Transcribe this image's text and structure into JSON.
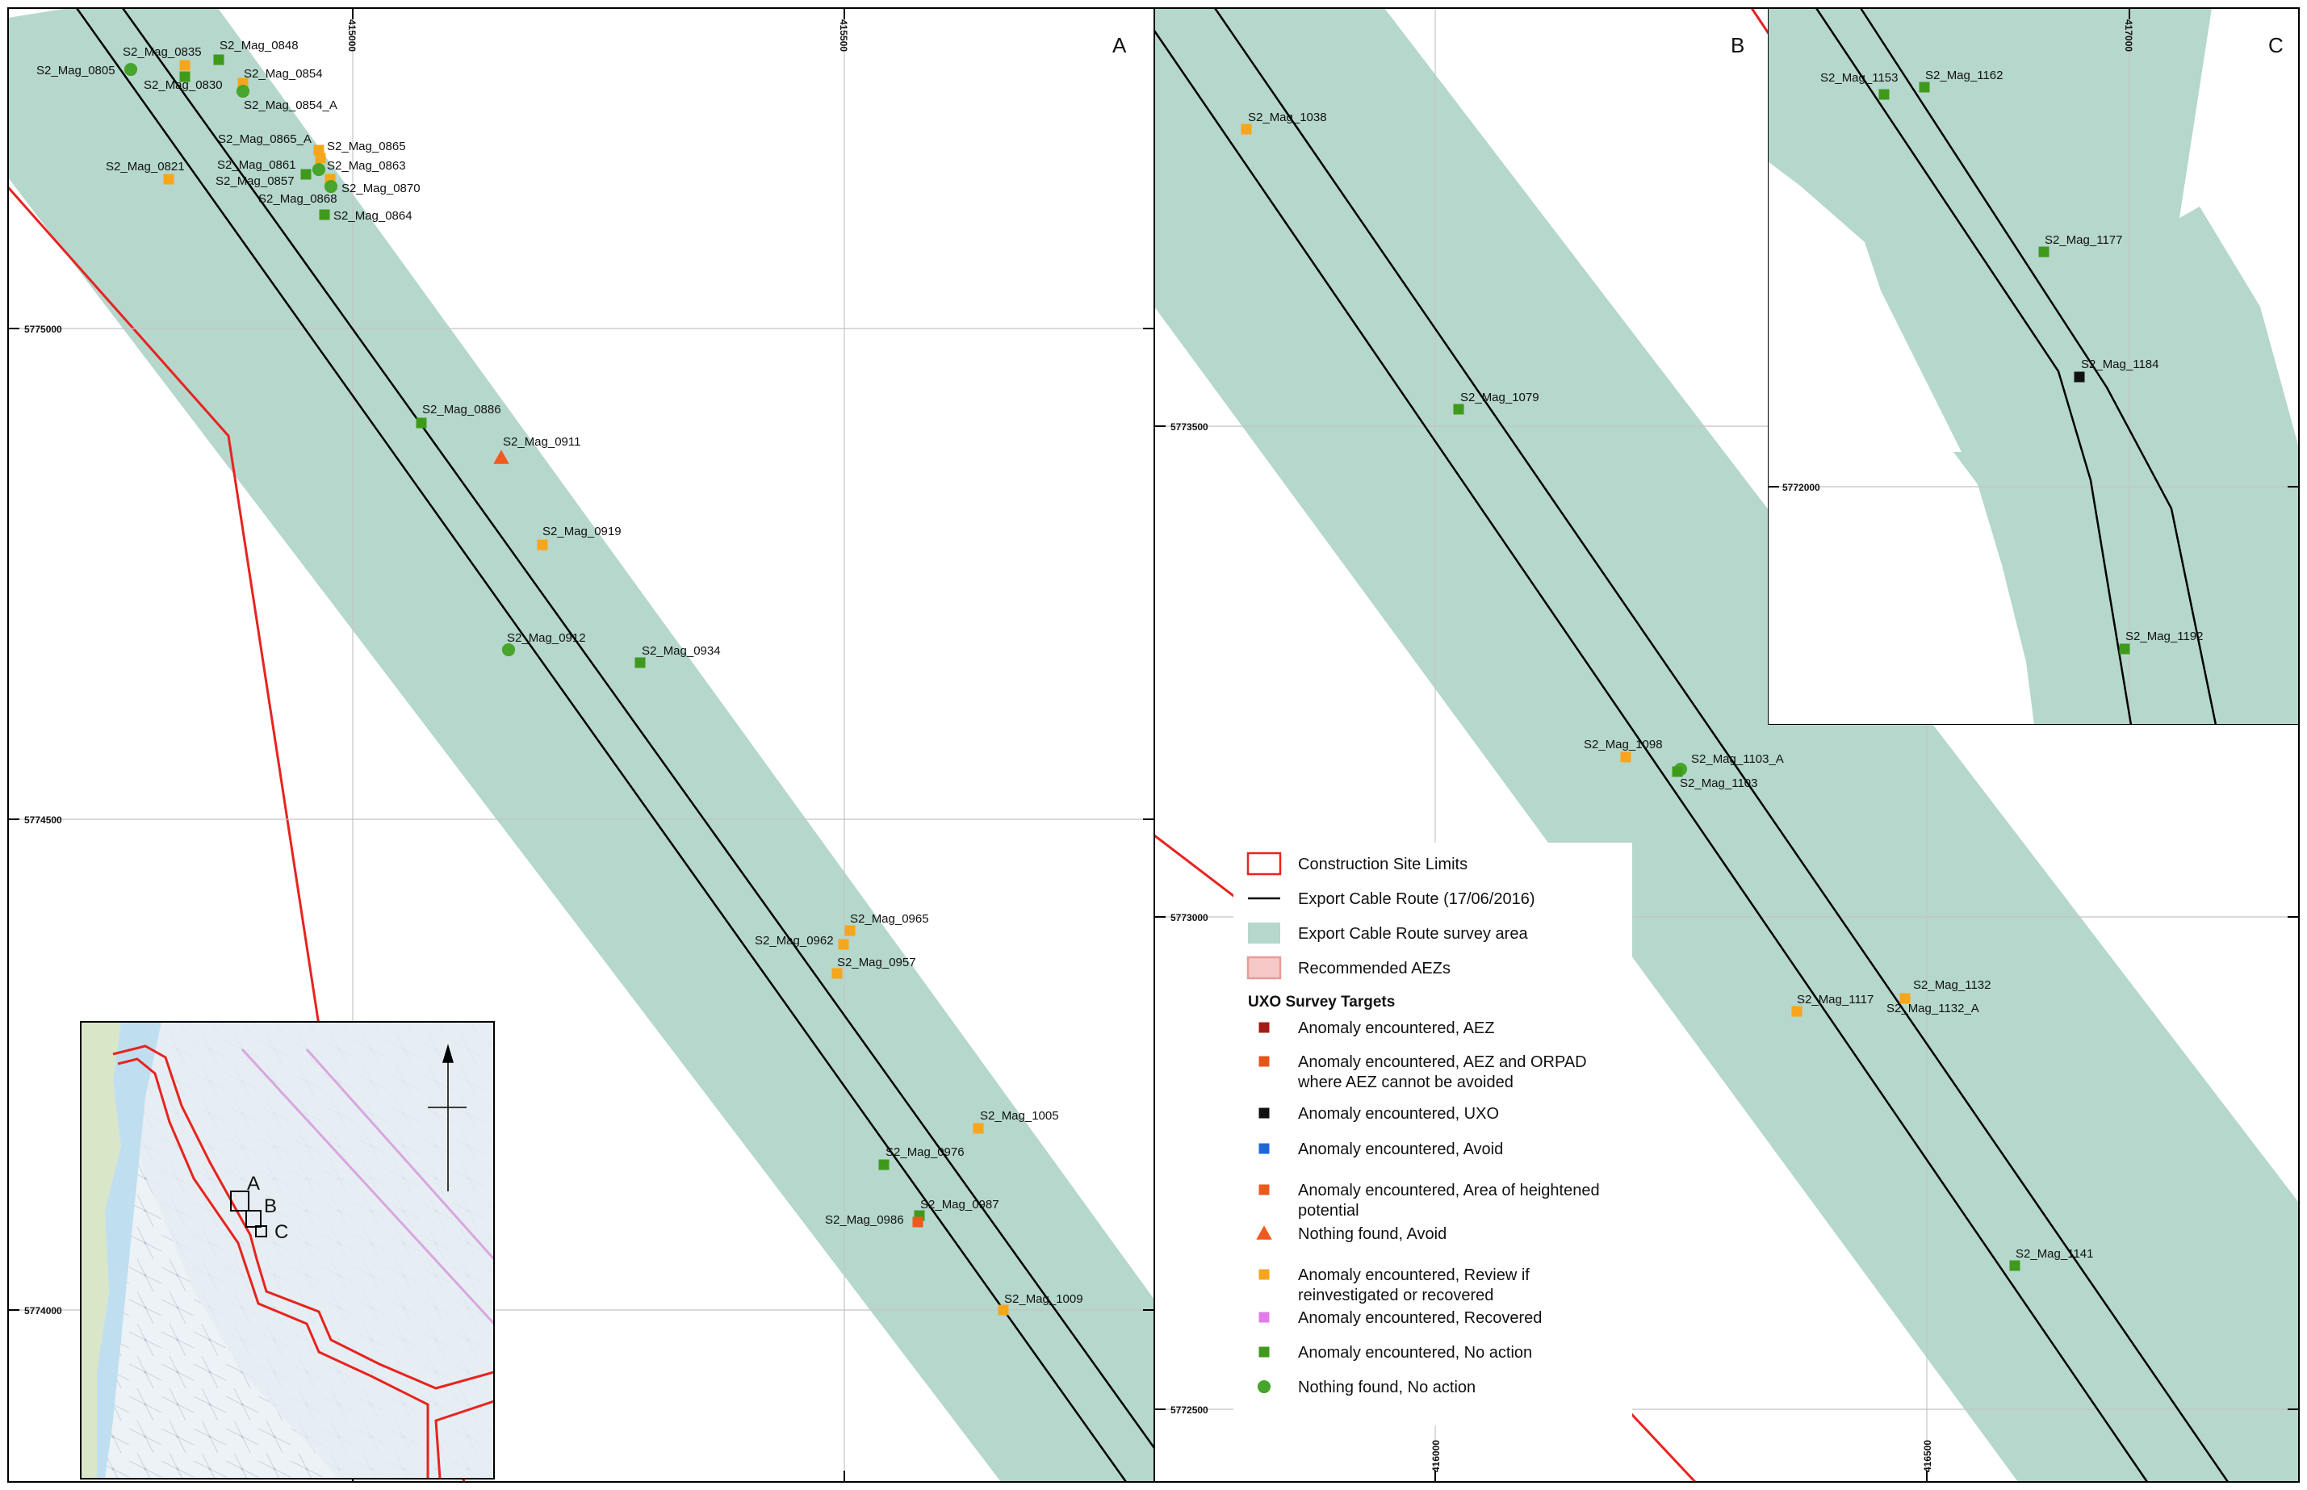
{
  "colors": {
    "survey_area": "#b5d7cc",
    "site_limits": "#e8231f",
    "cable": "#000000",
    "grid": "#c4c4c4",
    "aez_fill": "#f6c9c9",
    "aez_stroke": "#e89a9a",
    "anomaly_aez": "#a51b16",
    "anomaly_aez_orpad": "#e6541c",
    "anomaly_uxo": "#111111",
    "anomaly_avoid": "#1f67d8",
    "anomaly_heightened": "#ea5a1c",
    "nothing_found_avoid": "#f05a1c",
    "review": "#f7a61b",
    "recovered": "#e27be8",
    "no_action_square": "#3f9a1b",
    "nothing_found_no_action": "#46a52a"
  },
  "panels": {
    "A": {
      "letter": "A",
      "x_ticks": [
        "415000",
        "415500"
      ],
      "y_ticks": [
        "5775000",
        "5774500",
        "5774000"
      ],
      "targets": [
        {
          "label": "S2_Mag_0805",
          "sym": "circle",
          "color": "#46a52a"
        },
        {
          "label": "S2_Mag_0835",
          "sym": "square",
          "color": "#f7a61b"
        },
        {
          "label": "S2_Mag_0848",
          "sym": "square",
          "color": "#3f9a1b"
        },
        {
          "label": "S2_Mag_0830",
          "sym": "square",
          "color": "#3f9a1b"
        },
        {
          "label": "S2_Mag_0854",
          "sym": "square",
          "color": "#f7a61b"
        },
        {
          "label": "S2_Mag_0854_A",
          "sym": "circle",
          "color": "#46a52a"
        },
        {
          "label": "S2_Mag_0865_A",
          "sym": "square",
          "color": "#f7a61b"
        },
        {
          "label": "S2_Mag_0865",
          "sym": "square",
          "color": "#f7a61b"
        },
        {
          "label": "S2_Mag_0821",
          "sym": "square",
          "color": "#f7a61b"
        },
        {
          "label": "S2_Mag_0861",
          "sym": "square",
          "color": "#3f9a1b"
        },
        {
          "label": "S2_Mag_0863",
          "sym": "circle",
          "color": "#46a52a"
        },
        {
          "label": "S2_Mag_0857",
          "sym": "square",
          "color": "#f7a61b"
        },
        {
          "label": "S2_Mag_0870",
          "sym": "circle",
          "color": "#46a52a"
        },
        {
          "label": "S2_Mag_0868",
          "sym": "square",
          "color": "#3f9a1b"
        },
        {
          "label": "S2_Mag_0864",
          "sym": "square",
          "color": "#3f9a1b"
        },
        {
          "label": "S2_Mag_0886",
          "sym": "square",
          "color": "#3f9a1b"
        },
        {
          "label": "S2_Mag_0911",
          "sym": "triangle",
          "color": "#f05a1c"
        },
        {
          "label": "S2_Mag_0919",
          "sym": "square",
          "color": "#f7a61b"
        },
        {
          "label": "S2_Mag_0912",
          "sym": "circle",
          "color": "#46a52a"
        },
        {
          "label": "S2_Mag_0934",
          "sym": "square",
          "color": "#3f9a1b"
        },
        {
          "label": "S2_Mag_0965",
          "sym": "square",
          "color": "#f7a61b"
        },
        {
          "label": "S2_Mag_0962",
          "sym": "square",
          "color": "#f7a61b"
        },
        {
          "label": "S2_Mag_0957",
          "sym": "square",
          "color": "#f7a61b"
        },
        {
          "label": "S2_Mag_1005",
          "sym": "square",
          "color": "#f7a61b"
        },
        {
          "label": "S2_Mag_0976",
          "sym": "square",
          "color": "#3f9a1b"
        },
        {
          "label": "S2_Mag_0987",
          "sym": "square",
          "color": "#3f9a1b"
        },
        {
          "label": "S2_Mag_0986",
          "sym": "square",
          "color": "#ea5a1c"
        },
        {
          "label": "S2_Mag_1009",
          "sym": "square",
          "color": "#f7a61b"
        }
      ]
    },
    "B": {
      "letter": "B",
      "x_ticks": [
        "416000",
        "416500"
      ],
      "y_ticks": [
        "5773500",
        "5773000",
        "5772500"
      ],
      "targets": [
        {
          "label": "S2_Mag_1038",
          "sym": "square",
          "color": "#f7a61b"
        },
        {
          "label": "S2_Mag_1079",
          "sym": "square",
          "color": "#3f9a1b"
        },
        {
          "label": "S2_Mag_1098",
          "sym": "square",
          "color": "#f7a61b"
        },
        {
          "label": "S2_Mag_1103_A",
          "sym": "circle",
          "color": "#46a52a"
        },
        {
          "label": "S2_Mag_1103",
          "sym": "square",
          "color": "#3f9a1b"
        },
        {
          "label": "S2_Mag_1117",
          "sym": "square",
          "color": "#f7a61b"
        },
        {
          "label": "S2_Mag_1132",
          "sym": "square",
          "color": "#f7a61b"
        },
        {
          "label": "S2_Mag_1132_A",
          "sym": "square",
          "color": "#f7a61b"
        },
        {
          "label": "S2_Mag_1141",
          "sym": "square",
          "color": "#3f9a1b"
        }
      ]
    },
    "C": {
      "letter": "C",
      "x_ticks": [
        "417000"
      ],
      "y_ticks": [
        "5772000"
      ],
      "targets": [
        {
          "label": "S2_Mag_1153",
          "sym": "square",
          "color": "#3f9a1b"
        },
        {
          "label": "S2_Mag_1162",
          "sym": "square",
          "color": "#3f9a1b"
        },
        {
          "label": "S2_Mag_1177",
          "sym": "square",
          "color": "#3f9a1b"
        },
        {
          "label": "S2_Mag_1184",
          "sym": "square",
          "color": "#111111"
        },
        {
          "label": "S2_Mag_1192",
          "sym": "square",
          "color": "#3f9a1b"
        }
      ]
    }
  },
  "legend": {
    "layers": [
      {
        "label": "Construction Site Limits",
        "symbol": "site-limits"
      },
      {
        "label": "Export Cable Route (17/06/2016)",
        "symbol": "cable-line"
      },
      {
        "label": "Export Cable Route survey area",
        "symbol": "survey-area"
      },
      {
        "label": "Recommended AEZs",
        "symbol": "aez"
      }
    ],
    "heading": "UXO Survey Targets",
    "items": [
      {
        "lines": [
          "Anomaly encountered, AEZ"
        ],
        "sym": "square",
        "color": "#a51b16"
      },
      {
        "lines": [
          "Anomaly encountered, AEZ and ORPAD",
          "where AEZ cannot be avoided"
        ],
        "sym": "square",
        "color": "#e6541c"
      },
      {
        "lines": [
          "Anomaly encountered, UXO"
        ],
        "sym": "square",
        "color": "#111111"
      },
      {
        "lines": [
          "Anomaly encountered, Avoid"
        ],
        "sym": "square",
        "color": "#1f67d8"
      },
      {
        "lines": [
          "Anomaly encountered, Area of heightened",
          "potential"
        ],
        "sym": "square",
        "color": "#ea5a1c"
      },
      {
        "lines": [
          "Nothing found, Avoid"
        ],
        "sym": "triangle",
        "color": "#f05a1c"
      },
      {
        "lines": [
          "Anomaly encountered, Review if",
          "reinvestigated or recovered"
        ],
        "sym": "square",
        "color": "#f7a61b"
      },
      {
        "lines": [
          "Anomaly encountered, Recovered"
        ],
        "sym": "square",
        "color": "#e27be8"
      },
      {
        "lines": [
          "Anomaly encountered, No action"
        ],
        "sym": "square",
        "color": "#3f9a1b"
      },
      {
        "lines": [
          "Nothing found, No action"
        ],
        "sym": "circle",
        "color": "#46a52a"
      }
    ]
  },
  "inset": {
    "box_labels": [
      "A",
      "B",
      "C"
    ]
  }
}
